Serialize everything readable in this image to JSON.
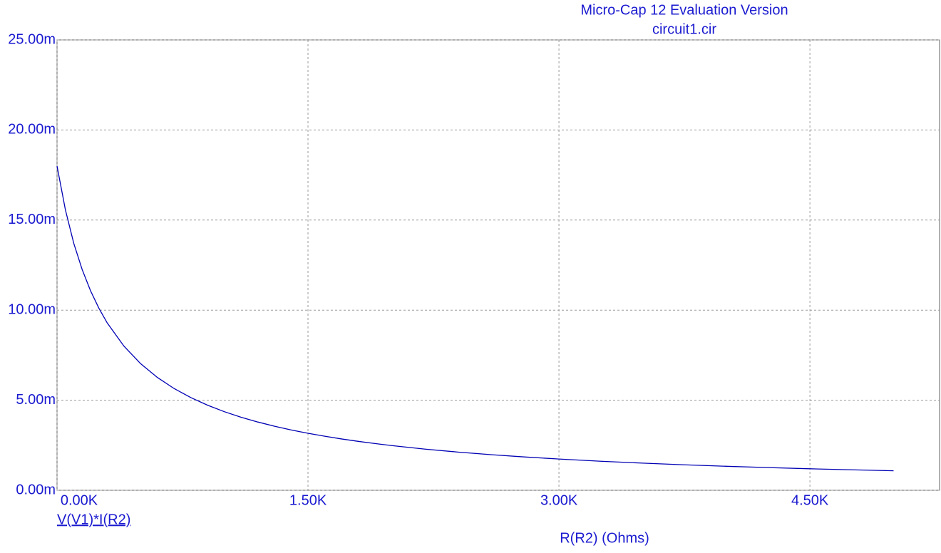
{
  "chart_data": {
    "type": "line",
    "title": "Micro-Cap 12 Evaluation Version",
    "subtitle": "circuit1.cir",
    "xlabel": "R(R2) (Ohms)",
    "x": [
      0,
      50,
      100,
      150,
      200,
      250,
      300,
      400,
      500,
      600,
      700,
      800,
      900,
      1000,
      1100,
      1200,
      1300,
      1400,
      1500,
      1600,
      1700,
      1800,
      1900,
      2000,
      2200,
      2400,
      2600,
      2800,
      3000,
      3250,
      3500,
      3750,
      4000,
      4250,
      4500,
      4750,
      5000
    ],
    "series": [
      {
        "name": "V(V1)*I(R2)",
        "color": "#0000b4",
        "values": [
          0.018,
          0.01557,
          0.01371,
          0.01226,
          0.01108,
          0.01011,
          0.00929,
          0.008,
          0.007024,
          0.006261,
          0.005647,
          0.005143,
          0.004721,
          0.004364,
          0.004056,
          0.00379,
          0.003556,
          0.003349,
          0.003165,
          0.003,
          0.002851,
          0.002717,
          0.002595,
          0.002483,
          0.002286,
          0.002118,
          0.001973,
          0.001846,
          0.001735,
          0.001613,
          0.001508,
          0.001415,
          0.001333,
          0.00126,
          0.001195,
          0.001136,
          0.001083
        ]
      }
    ],
    "xlim": [
      0,
      5275
    ],
    "ylim": [
      0,
      0.025
    ],
    "xticks": [
      {
        "value": 0,
        "label": "0.00K"
      },
      {
        "value": 1500,
        "label": "1.50K"
      },
      {
        "value": 3000,
        "label": "3.00K"
      },
      {
        "value": 4500,
        "label": "4.50K"
      }
    ],
    "yticks": [
      {
        "value": 0,
        "label": "0.00m"
      },
      {
        "value": 0.005,
        "label": "5.00m"
      },
      {
        "value": 0.01,
        "label": "10.00m"
      },
      {
        "value": 0.015,
        "label": "15.00m"
      },
      {
        "value": 0.02,
        "label": "20.00m"
      },
      {
        "value": 0.025,
        "label": "25.00m"
      }
    ],
    "grid": true
  }
}
